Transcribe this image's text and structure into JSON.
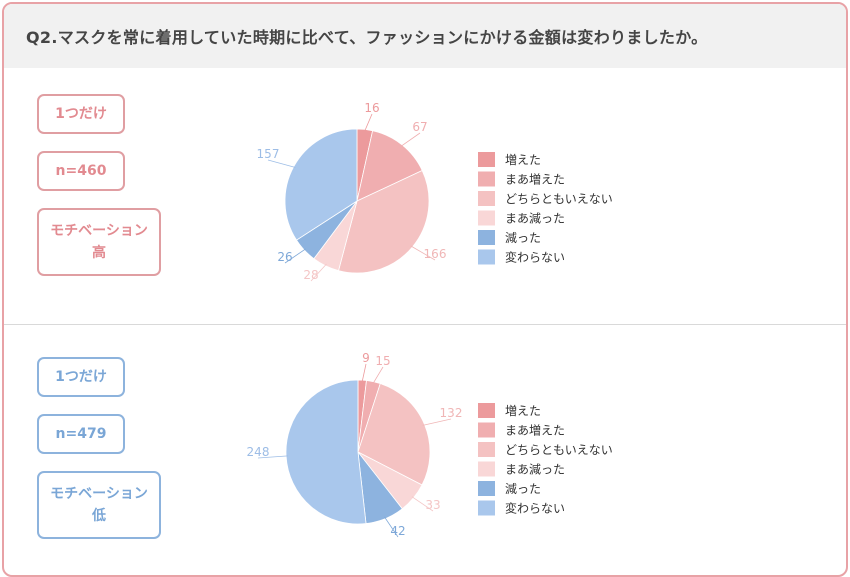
{
  "question": "Q2.マスクを常に着用していた時期に比べて、ファッションにかける金額は変わりましたか。",
  "colors": {
    "border": "#e8a2a6",
    "slices": [
      "#ec9a9c",
      "#f0aeb0",
      "#f4c2c2",
      "#f9d7d7",
      "#8db3df",
      "#a9c7ec"
    ]
  },
  "sections": [
    {
      "tag_only": "1つだけ",
      "tag_n": "n=460",
      "tag_motivation_line1": "モチベーション",
      "tag_motivation_line2": "高",
      "accent": "pink"
    },
    {
      "tag_only": "1つだけ",
      "tag_n": "n=479",
      "tag_motivation_line1": "モチベーション",
      "tag_motivation_line2": "低",
      "accent": "blue"
    }
  ],
  "chart_data": [
    {
      "type": "pie",
      "categories": [
        "増えた",
        "まあ増えた",
        "どちらともいえない",
        "まあ減った",
        "減った",
        "変わらない"
      ],
      "values": [
        16,
        67,
        166,
        28,
        26,
        157
      ],
      "legend_position": "right"
    },
    {
      "type": "pie",
      "categories": [
        "増えた",
        "まあ増えた",
        "どちらともいえない",
        "まあ減った",
        "減った",
        "変わらない"
      ],
      "values": [
        9,
        15,
        132,
        33,
        42,
        248
      ],
      "legend_position": "right"
    }
  ]
}
